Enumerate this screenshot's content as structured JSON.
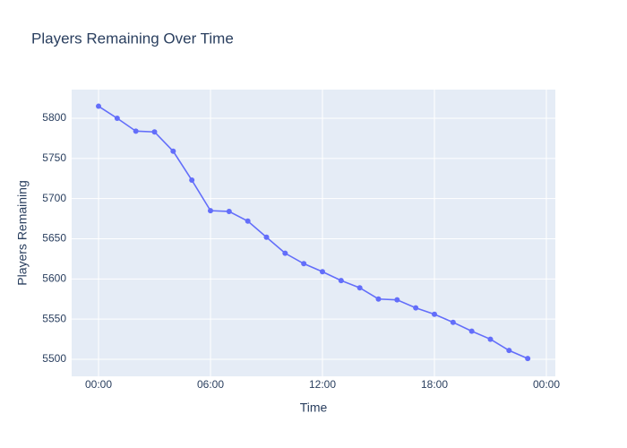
{
  "chart_data": {
    "type": "line",
    "title": "Players Remaining Over Time",
    "x_label": "Time",
    "y_label": "Players Remaining",
    "x": [
      0,
      1,
      2,
      3,
      4,
      5,
      6,
      7,
      8,
      9,
      10,
      11,
      12,
      13,
      14,
      15,
      16,
      17,
      18,
      19,
      20,
      21,
      22,
      23
    ],
    "series": [
      {
        "name": "Players Remaining",
        "color": "#636efa",
        "values": [
          5815,
          5800,
          5784,
          5783,
          5759,
          5723,
          5685,
          5684,
          5672,
          5652,
          5632,
          5619,
          5609,
          5598,
          5589,
          5575,
          5574,
          5564,
          5556,
          5546,
          5535,
          5525,
          5511,
          5501
        ]
      }
    ],
    "xlim": [
      -1.44,
      24.48
    ],
    "xticks": [
      {
        "value": 0,
        "label": "00:00"
      },
      {
        "value": 6,
        "label": "06:00"
      },
      {
        "value": 12,
        "label": "12:00"
      },
      {
        "value": 18,
        "label": "18:00"
      },
      {
        "value": 24,
        "label": "00:00"
      }
    ],
    "ylim": [
      5478.8,
      5835.7
    ],
    "yticks": [
      5500,
      5550,
      5600,
      5650,
      5700,
      5750,
      5800
    ],
    "grid": true
  }
}
